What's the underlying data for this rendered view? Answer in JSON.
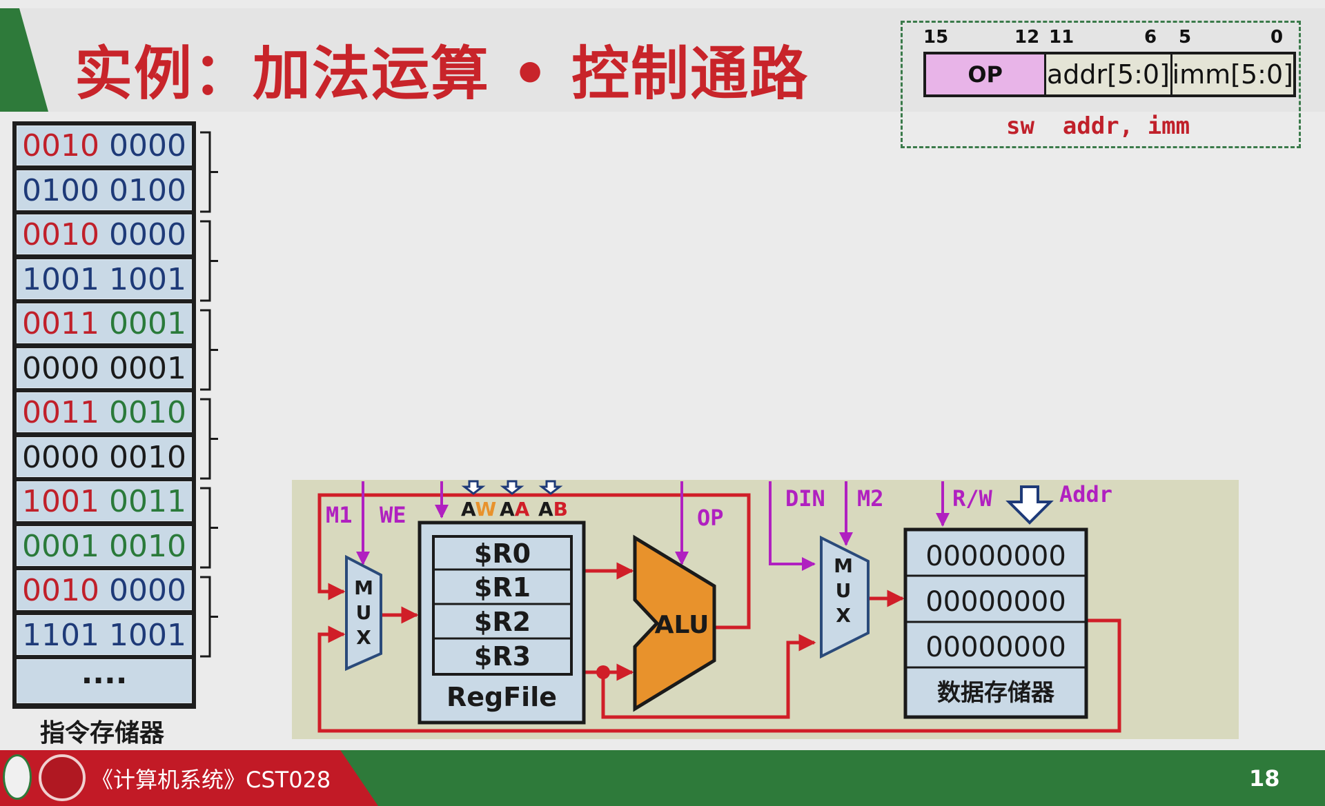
{
  "slide": {
    "title": "实例：加法运算 • 控制通路",
    "page_number": "18",
    "course": "《计算机系统》CST028"
  },
  "instruction_format": {
    "bits": {
      "b15": "15",
      "b12": "12",
      "b11": "11",
      "b6": "6",
      "b5": "5",
      "b0": "0"
    },
    "fields": {
      "op": "OP",
      "addr": "addr[5:0]",
      "imm": "imm[5:0]"
    },
    "syntax": "sw  addr, imm"
  },
  "instruction_memory": {
    "label": "指令存储器",
    "rows": [
      {
        "hi": "0010",
        "lo": "0000",
        "hi_color": "red",
        "lo_color": "blue"
      },
      {
        "hi": "0100",
        "lo": "0100",
        "hi_color": "blue",
        "lo_color": "blue"
      },
      {
        "hi": "0010",
        "lo": "0000",
        "hi_color": "red",
        "lo_color": "blue"
      },
      {
        "hi": "1001",
        "lo": "1001",
        "hi_color": "blue",
        "lo_color": "blue"
      },
      {
        "hi": "0011",
        "lo": "0001",
        "hi_color": "red",
        "lo_color": "green"
      },
      {
        "hi": "0000",
        "lo": "0001",
        "hi_color": "black",
        "lo_color": "black"
      },
      {
        "hi": "0011",
        "lo": "0010",
        "hi_color": "red",
        "lo_color": "green"
      },
      {
        "hi": "0000",
        "lo": "0010",
        "hi_color": "black",
        "lo_color": "black"
      },
      {
        "hi": "1001",
        "lo": "0011",
        "hi_color": "red",
        "lo_color": "green"
      },
      {
        "hi": "0001",
        "lo": "0010",
        "hi_color": "green",
        "lo_color": "green"
      },
      {
        "hi": "0010",
        "lo": "0000",
        "hi_color": "red",
        "lo_color": "blue"
      },
      {
        "hi": "1101",
        "lo": "1001",
        "hi_color": "blue",
        "lo_color": "blue"
      }
    ],
    "more": "...."
  },
  "datapath": {
    "m1": "M1",
    "we": "WE",
    "mux_letters": [
      "M",
      "U",
      "X"
    ],
    "aw_prefix": "A",
    "aw_suffix": "W",
    "aa_prefix": "A",
    "aa_suffix": "A",
    "ab_prefix": "A",
    "ab_suffix": "B",
    "registers": [
      "$R0",
      "$R1",
      "$R2",
      "$R3"
    ],
    "regfile": "RegFile",
    "op": "OP",
    "alu": "ALU",
    "din": "DIN",
    "m2": "M2",
    "rw": "R/W",
    "addr": "Addr",
    "data_memory_cells": [
      "00000000",
      "00000000",
      "00000000"
    ],
    "data_memory_label": "数据存储器"
  },
  "colors": {
    "red": "#c0202a",
    "blue": "#1e3a78",
    "green": "#2a7a3a",
    "black": "#1a1a1a",
    "control": "#b020c0",
    "wire": "#d01e28",
    "op_field": "#e8b4e8",
    "alu": "#e8922c"
  }
}
